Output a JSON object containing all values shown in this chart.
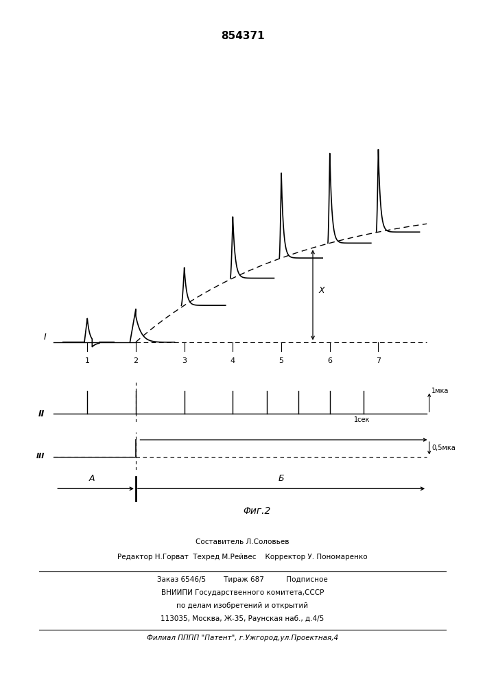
{
  "title": "854371",
  "title_fontsize": 11,
  "bg_color": "#ffffff",
  "text_color": "#000000",
  "label_I": "I",
  "label_II": "II",
  "label_III": "III",
  "tick_labels": [
    "1",
    "2",
    "3",
    "4",
    "5",
    "6",
    "7"
  ],
  "x_annotation": "X",
  "fig2_label": "Φиг.2",
  "label_A": "A",
  "label_B": "Б",
  "label_1mka": "1мка",
  "label_1sek": "1сек",
  "label_05mka": "0,5мка",
  "footer_line1": "Составитель Л.Соловьев",
  "footer_line2": "Редактор Н.Горват  Техред М.Рейвес    Корректор У. Пономаренко",
  "footer_line3": "Заказ 6546/5        Тираж 687          Подписное",
  "footer_line4": "ВНИИПИ Государственного комитета,СССР",
  "footer_line5": "по делам изобретений и открытий",
  "footer_line6": "113035, Москва, Ж-35, Раунская наб., д.4/5",
  "footer_line7": "Филиал ПППП \"Патент\", г.Ужгород,ул.Проектная,4"
}
